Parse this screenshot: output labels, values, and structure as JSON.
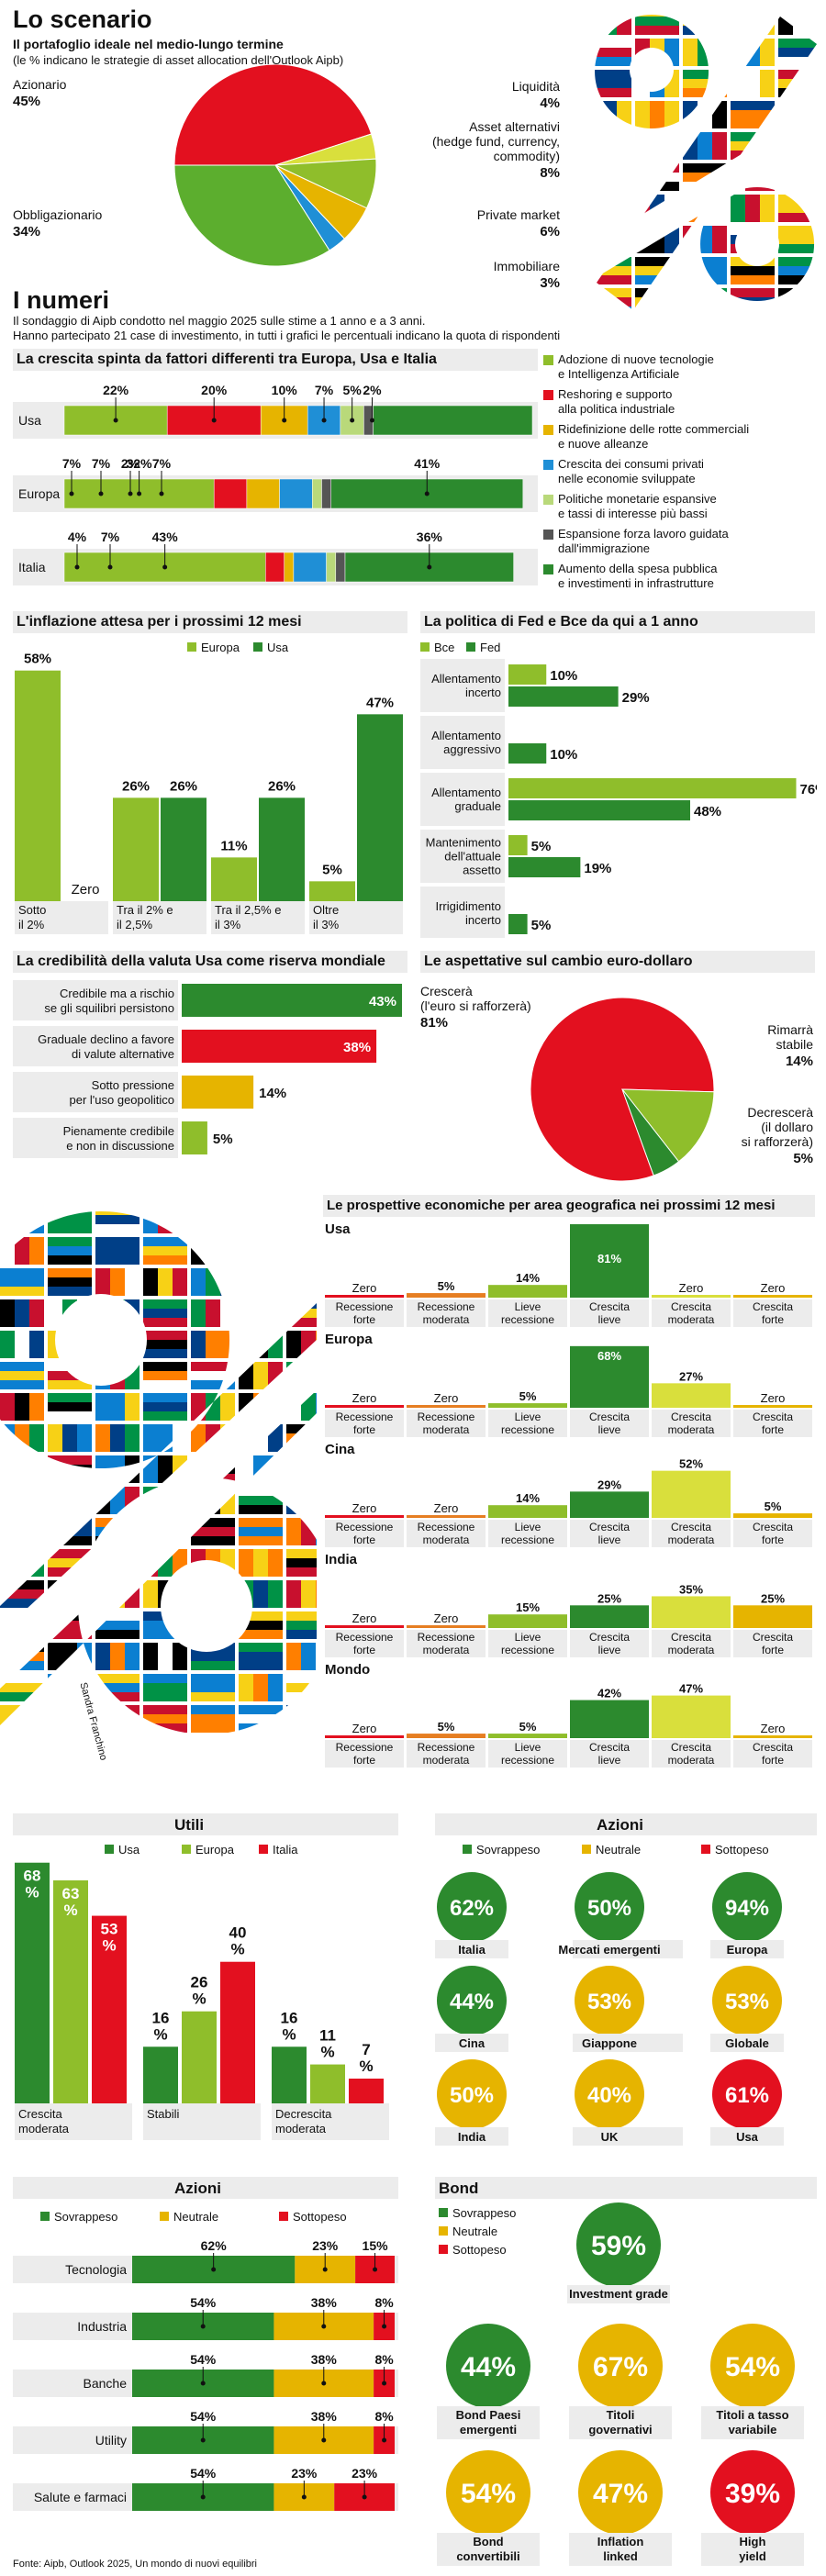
{
  "colors": {
    "green_light": "#8fbe2b",
    "green_dark": "#2c8a2e",
    "red": "#e3101f",
    "yellow": "#e6b400",
    "blue": "#1f8fd6",
    "gray_dark": "#555555",
    "lime": "#d9df3c",
    "gray": "#ececec"
  },
  "scenario": {
    "title": "Lo scenario",
    "subtitle": "Il portafoglio ideale nel medio-lungo termine",
    "note": "(le % indicano le strategie di asset allocation dell'Outlook Aipb)",
    "chart_data": {
      "type": "pie",
      "slices": [
        {
          "label": "Azionario",
          "value": 45,
          "display": "45%",
          "color": "#e3101f"
        },
        {
          "label": "Liquidità",
          "value": 4,
          "display": "4%",
          "color": "#d9df3c"
        },
        {
          "label": "Asset alternativi (hedge fund, currency, commodity)",
          "value": 8,
          "display": "8%",
          "color": "#8fbe2b"
        },
        {
          "label": "Private market",
          "value": 6,
          "display": "6%",
          "color": "#e6b400"
        },
        {
          "label": "Immobiliare",
          "value": 3,
          "display": "3%",
          "color": "#1f8fd6"
        },
        {
          "label": "Obbligazionario",
          "value": 34,
          "display": "34%",
          "color": "#5cae2e"
        }
      ]
    },
    "labels": {
      "azionario": "Azionario",
      "liquidita": "Liquidità",
      "asset_alt": "Asset alternativi",
      "asset_alt2": "(hedge fund, currency,",
      "asset_alt3": "commodity)",
      "private": "Private market",
      "immobiliare": "Immobiliare",
      "obbligazionario": "Obbligazionario"
    }
  },
  "numeri": {
    "title": "I numeri",
    "text1": "Il sondaggio di Aipb condotto nel maggio 2025 sulle stime a 1 anno e a 3 anni.",
    "text2": "Hanno partecipato 21 case di investimento, in tutti i grafici le percentuali indicano la quota di rispondenti"
  },
  "crescita": {
    "title": "La crescita spinta da fattori differenti tra Europa, Usa e Italia",
    "chart_data": {
      "type": "bar",
      "stacked": true,
      "horizontal": true,
      "categories": [
        "Usa",
        "Europa",
        "Italia"
      ],
      "series": [
        {
          "name": "Adozione di nuove tecnologie e Intelligenza Artificiale",
          "color": "#8fbe2b",
          "values": [
            22,
            32,
            43
          ]
        },
        {
          "name": "Reshoring e supporto alla politica industriale",
          "color": "#e3101f",
          "values": [
            20,
            7,
            4
          ]
        },
        {
          "name": "Ridefinizione delle rotte commerciali e nuove alleanze",
          "color": "#e6b400",
          "values": [
            10,
            7,
            2
          ]
        },
        {
          "name": "Crescita dei consumi privati nelle economie sviluppate",
          "color": "#1f8fd6",
          "values": [
            7,
            7,
            7
          ]
        },
        {
          "name": "Politiche monetarie espansive e tassi di interesse più bassi",
          "color": "#b9d97a",
          "values": [
            5,
            2,
            2
          ]
        },
        {
          "name": "Espansione forza lavoro guidata dall'immigrazione",
          "color": "#555555",
          "values": [
            2,
            2,
            2
          ]
        },
        {
          "name": "Aumento della spesa pubblica e investimenti in infrastrutture",
          "color": "#2c8a2e",
          "values": [
            34,
            41,
            36
          ]
        }
      ],
      "labels_shown": {
        "Usa": [
          "22%",
          "20%",
          "10%",
          "7%",
          "5%",
          "2%"
        ],
        "Europa": [
          "7%",
          "7%",
          "2%",
          "7%",
          "32%",
          "41%"
        ],
        "Italia": [
          "4%",
          "7%",
          "43%",
          "36%"
        ]
      }
    },
    "legend": [
      {
        "l1": "Adozione di nuove tecnologie",
        "l2": "e Intelligenza Artificiale",
        "color": "#8fbe2b"
      },
      {
        "l1": "Reshoring e supporto",
        "l2": "alla politica industriale",
        "color": "#e3101f"
      },
      {
        "l1": "Ridefinizione delle rotte commerciali",
        "l2": "e nuove alleanze",
        "color": "#e6b400"
      },
      {
        "l1": "Crescita dei consumi privati",
        "l2": "nelle economie sviluppate",
        "color": "#1f8fd6"
      },
      {
        "l1": "Politiche monetarie espansive",
        "l2": "e tassi di interesse più bassi",
        "color": "#b9d97a"
      },
      {
        "l1": "Espansione forza lavoro guidata",
        "l2": "dall'immigrazione",
        "color": "#555555"
      },
      {
        "l1": "Aumento della spesa pubblica",
        "l2": "e investimenti in infrastrutture",
        "color": "#2c8a2e"
      }
    ]
  },
  "inflazione": {
    "title": "L'inflazione attesa per i prossimi 12 mesi",
    "chart_data": {
      "type": "bar",
      "categories": [
        "Sotto il 2%",
        "Tra il 2% e il 2,5%",
        "Tra il 2,5% e il 3%",
        "Oltre il 3%"
      ],
      "series": [
        {
          "name": "Europa",
          "color": "#8fbe2b",
          "values": [
            58,
            26,
            11,
            5
          ]
        },
        {
          "name": "Usa",
          "color": "#2c8a2e",
          "values": [
            0,
            26,
            26,
            47
          ]
        }
      ],
      "value_labels": [
        [
          "58%",
          "Zero"
        ],
        [
          "26%",
          "26%"
        ],
        [
          "11%",
          "26%"
        ],
        [
          "5%",
          "47%"
        ]
      ]
    },
    "cat_lines": [
      [
        "Sotto",
        "il 2%"
      ],
      [
        "Tra il 2% e",
        "il 2,5%"
      ],
      [
        "Tra il 2,5% e",
        "il 3%"
      ],
      [
        "Oltre",
        "il 3%"
      ]
    ]
  },
  "fed": {
    "title": "La politica di Fed e Bce da qui a 1 anno",
    "chart_data": {
      "type": "bar",
      "horizontal": true,
      "categories": [
        "Allentamento incerto",
        "Allentamento aggressivo",
        "Allentamento graduale",
        "Mantenimento dell'attuale assetto",
        "Irrigidimento incerto"
      ],
      "series": [
        {
          "name": "Bce",
          "color": "#8fbe2b",
          "values": [
            10,
            0,
            76,
            5,
            0
          ]
        },
        {
          "name": "Fed",
          "color": "#2c8a2e",
          "values": [
            29,
            10,
            48,
            19,
            5
          ]
        }
      ],
      "value_labels": [
        [
          "10%",
          "29%"
        ],
        [
          "",
          "10%"
        ],
        [
          "76%",
          "48%"
        ],
        [
          "5%",
          "19%"
        ],
        [
          "",
          "5%"
        ]
      ]
    },
    "cat_lines": [
      [
        "Allentamento",
        "incerto"
      ],
      [
        "Allentamento",
        "aggressivo"
      ],
      [
        "Allentamento",
        "graduale"
      ],
      [
        "Mantenimento",
        "dell'attuale",
        "assetto"
      ],
      [
        "Irrigidimento",
        "incerto"
      ]
    ]
  },
  "credibilita": {
    "title": "La credibilità della valuta Usa come riserva mondiale",
    "chart_data": {
      "type": "bar",
      "horizontal": true,
      "categories": [
        "Credibile ma a rischio se gli squilibri persistono",
        "Graduale declino a favore di valute alternative",
        "Sotto pressione per l'uso geopolitico",
        "Pienamente credibile e non in discussione"
      ],
      "values": [
        43,
        38,
        14,
        5
      ],
      "value_labels": [
        "43%",
        "38%",
        "14%",
        "5%"
      ],
      "colors": [
        "#2c8a2e",
        "#e3101f",
        "#e6b400",
        "#8fbe2b"
      ]
    },
    "cat_lines": [
      [
        "Credibile ma a rischio",
        "se gli squilibri persistono"
      ],
      [
        "Graduale declino a favore",
        "di valute alternative"
      ],
      [
        "Sotto pressione",
        "per l'uso geopolitico"
      ],
      [
        "Pienamente credibile",
        "e non in discussione"
      ]
    ]
  },
  "cambio": {
    "title": "Le aspettative sul cambio euro-dollaro",
    "chart_data": {
      "type": "pie",
      "slices": [
        {
          "label": "Crescerà (l'euro si rafforzerà)",
          "value": 81,
          "display": "81%",
          "color": "#e3101f"
        },
        {
          "label": "Rimarrà stabile",
          "value": 14,
          "display": "14%",
          "color": "#8fbe2b"
        },
        {
          "label": "Decrescerà (il dollaro si rafforzerà)",
          "value": 5,
          "display": "5%",
          "color": "#2c8a2e"
        }
      ]
    },
    "l_cresc1": "Crescerà",
    "l_cresc2": "(l'euro si rafforzerà)",
    "l_rim1": "Rimarrà",
    "l_rim2": "stabile",
    "l_dec1": "Decrescerà",
    "l_dec2": "(il dollaro",
    "l_dec3": "si rafforzerà)"
  },
  "prospettive": {
    "title": "Le prospettive economiche per area geografica nei prossimi 12 mesi",
    "cat_lines": [
      [
        "Recessione",
        "forte"
      ],
      [
        "Recessione",
        "moderata"
      ],
      [
        "Lieve",
        "recessione"
      ],
      [
        "Crescita",
        "lieve"
      ],
      [
        "Crescita",
        "moderata"
      ],
      [
        "Crescita",
        "forte"
      ]
    ],
    "bar_colors": [
      "#e3101f",
      "#e67e22",
      "#8fbe2b",
      "#2c8a2e",
      "#d9df3c",
      "#e6b400"
    ],
    "chart_data": {
      "type": "bar",
      "categories": [
        "Recessione forte",
        "Recessione moderata",
        "Lieve recessione",
        "Crescita lieve",
        "Crescita moderata",
        "Crescita forte"
      ],
      "series": [
        {
          "name": "Usa",
          "values": [
            0,
            5,
            14,
            81,
            0,
            0
          ],
          "value_labels": [
            "Zero",
            "5%",
            "14%",
            "81%",
            "Zero",
            "Zero"
          ]
        },
        {
          "name": "Europa",
          "values": [
            0,
            0,
            5,
            68,
            27,
            0
          ],
          "value_labels": [
            "Zero",
            "Zero",
            "5%",
            "68%",
            "27%",
            "Zero"
          ]
        },
        {
          "name": "Cina",
          "values": [
            0,
            0,
            14,
            29,
            52,
            5
          ],
          "value_labels": [
            "Zero",
            "Zero",
            "14%",
            "29%",
            "52%",
            "5%"
          ]
        },
        {
          "name": "India",
          "values": [
            0,
            0,
            15,
            25,
            35,
            25
          ],
          "value_labels": [
            "Zero",
            "Zero",
            "15%",
            "25%",
            "35%",
            "25%"
          ]
        },
        {
          "name": "Mondo",
          "values": [
            0,
            5,
            5,
            42,
            47,
            0
          ],
          "value_labels": [
            "Zero",
            "5%",
            "5%",
            "42%",
            "47%",
            "Zero"
          ]
        }
      ]
    }
  },
  "credit": "Sandra Franchino",
  "utili": {
    "title": "Utili",
    "chart_data": {
      "type": "bar",
      "categories": [
        "Crescita moderata",
        "Stabili",
        "Decrescita moderata"
      ],
      "series": [
        {
          "name": "Usa",
          "color": "#2c8a2e",
          "values": [
            68,
            16,
            16
          ]
        },
        {
          "name": "Europa",
          "color": "#8fbe2b",
          "values": [
            63,
            26,
            11
          ]
        },
        {
          "name": "Italia",
          "color": "#e3101f",
          "values": [
            53,
            40,
            7
          ]
        }
      ],
      "value_labels": [
        [
          "68%",
          "63%",
          "53%"
        ],
        [
          "16%",
          "26%",
          "40%"
        ],
        [
          "16%",
          "11%",
          "7%"
        ]
      ]
    },
    "cat_lines": [
      [
        "Crescita",
        "moderata"
      ],
      [
        "Stabili",
        ""
      ],
      [
        "Decrescita",
        "moderata"
      ]
    ]
  },
  "azioni_aree": {
    "title": "Azioni",
    "legend": [
      {
        "label": "Sovrappeso",
        "color": "#2c8a2e"
      },
      {
        "label": "Neutrale",
        "color": "#e6b400"
      },
      {
        "label": "Sottopeso",
        "color": "#e3101f"
      }
    ],
    "items": [
      {
        "name": "Italia",
        "value": "62%",
        "stance": "Sovrappeso"
      },
      {
        "name": "Mercati emergenti",
        "value": "50%",
        "stance": "Sovrappeso"
      },
      {
        "name": "Europa",
        "value": "94%",
        "stance": "Sovrappeso"
      },
      {
        "name": "Cina",
        "value": "44%",
        "stance": "Sovrappeso"
      },
      {
        "name": "Giappone",
        "value": "53%",
        "stance": "Neutrale"
      },
      {
        "name": "Globale",
        "value": "53%",
        "stance": "Neutrale"
      },
      {
        "name": "India",
        "value": "50%",
        "stance": "Neutrale"
      },
      {
        "name": "UK",
        "value": "40%",
        "stance": "Neutrale"
      },
      {
        "name": "Usa",
        "value": "61%",
        "stance": "Sottopeso"
      }
    ]
  },
  "azioni_settori": {
    "title": "Azioni",
    "legend": [
      {
        "label": "Sovrappeso",
        "color": "#2c8a2e"
      },
      {
        "label": "Neutrale",
        "color": "#e6b400"
      },
      {
        "label": "Sottopeso",
        "color": "#e3101f"
      }
    ],
    "chart_data": {
      "type": "bar",
      "stacked": true,
      "horizontal": true,
      "categories": [
        "Tecnologia",
        "Industria",
        "Banche",
        "Utility",
        "Salute e farmaci"
      ],
      "series": [
        {
          "name": "Sovrappeso",
          "color": "#2c8a2e",
          "values": [
            62,
            54,
            54,
            54,
            54
          ]
        },
        {
          "name": "Neutrale",
          "color": "#e6b400",
          "values": [
            23,
            38,
            38,
            38,
            23
          ]
        },
        {
          "name": "Sottopeso",
          "color": "#e3101f",
          "values": [
            15,
            8,
            8,
            8,
            23
          ]
        }
      ]
    }
  },
  "bond": {
    "title": "Bond",
    "legend": [
      {
        "label": "Sovrappeso",
        "color": "#2c8a2e"
      },
      {
        "label": "Neutrale",
        "color": "#e6b400"
      },
      {
        "label": "Sottopeso",
        "color": "#e3101f"
      }
    ],
    "items": [
      {
        "name1": "Investment grade",
        "name2": "",
        "value": "59%",
        "stance": "Sovrappeso"
      },
      {
        "name1": "Bond Paesi",
        "name2": "emergenti",
        "value": "44%",
        "stance": "Sovrappeso"
      },
      {
        "name1": "Titoli",
        "name2": "governativi",
        "value": "67%",
        "stance": "Neutrale"
      },
      {
        "name1": "Titoli a tasso",
        "name2": "variabile",
        "value": "54%",
        "stance": "Neutrale"
      },
      {
        "name1": "Bond",
        "name2": "convertibili",
        "value": "54%",
        "stance": "Neutrale"
      },
      {
        "name1": "Inflation",
        "name2": "linked",
        "value": "47%",
        "stance": "Neutrale"
      },
      {
        "name1": "High",
        "name2": "yield",
        "value": "39%",
        "stance": "Sottopeso"
      }
    ]
  },
  "source": "Fonte: Aipb, Outlook 2025, Un mondo di nuovi equilibri"
}
